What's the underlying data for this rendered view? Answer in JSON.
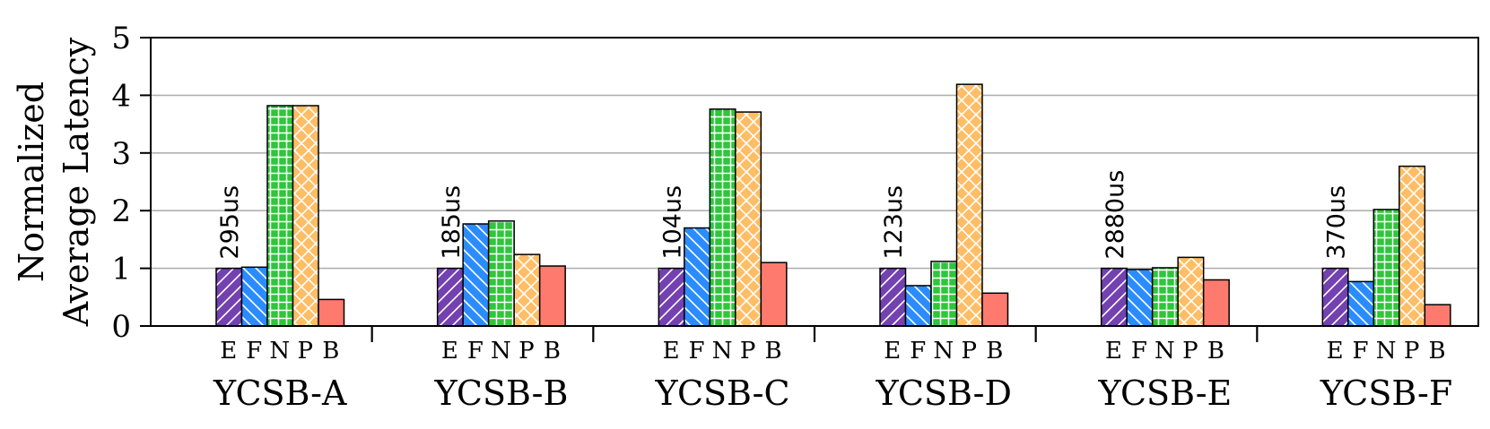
{
  "chart_data": {
    "type": "bar",
    "title": "",
    "xlabel": "",
    "ylabel": [
      "Normalized",
      "Average Latency"
    ],
    "ylim": [
      0,
      5
    ],
    "yticks": [
      0,
      1,
      2,
      3,
      4,
      5
    ],
    "grid": "y",
    "categories": [
      "YCSB-A",
      "YCSB-B",
      "YCSB-C",
      "YCSB-D",
      "YCSB-E",
      "YCSB-F"
    ],
    "series_letters": [
      "E",
      "F",
      "N",
      "P",
      "B"
    ],
    "series": [
      {
        "name": "E",
        "color": "#7341b0",
        "pattern": "diag",
        "values": [
          1.0,
          1.0,
          1.0,
          1.0,
          1.0,
          1.0
        ]
      },
      {
        "name": "F",
        "color": "#2b8cff",
        "pattern": "backdiag",
        "values": [
          1.02,
          1.77,
          1.7,
          0.7,
          0.98,
          0.77
        ]
      },
      {
        "name": "N",
        "color": "#2ec63a",
        "pattern": "grid",
        "values": [
          3.82,
          1.82,
          3.76,
          1.12,
          1.01,
          2.02
        ]
      },
      {
        "name": "P",
        "color": "#ffbd66",
        "pattern": "crosshatch",
        "values": [
          3.82,
          1.24,
          3.71,
          4.19,
          1.19,
          2.77
        ]
      },
      {
        "name": "B",
        "color": "#ff7a6e",
        "pattern": "none",
        "values": [
          0.46,
          1.04,
          1.1,
          0.57,
          0.8,
          0.37
        ]
      }
    ],
    "annotations": [
      "295us",
      "185us",
      "104us",
      "123us",
      "2880us",
      "370us"
    ]
  }
}
